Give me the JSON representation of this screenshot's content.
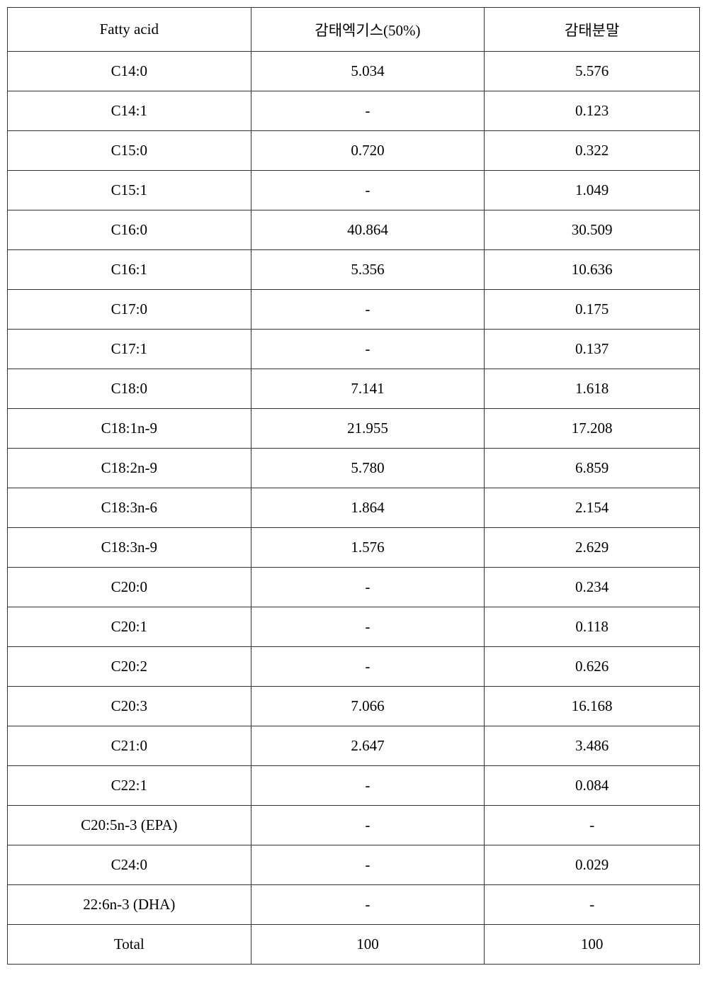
{
  "table": {
    "headers": {
      "col1": "Fatty acid",
      "col2": "감태엑기스(50%)",
      "col3": "감태분말"
    },
    "rows": [
      {
        "c1": "C14:0",
        "c2": "5.034",
        "c3": "5.576"
      },
      {
        "c1": "C14:1",
        "c2": "-",
        "c3": "0.123"
      },
      {
        "c1": "C15:0",
        "c2": "0.720",
        "c3": "0.322"
      },
      {
        "c1": "C15:1",
        "c2": "-",
        "c3": "1.049"
      },
      {
        "c1": "C16:0",
        "c2": "40.864",
        "c3": "30.509"
      },
      {
        "c1": "C16:1",
        "c2": "5.356",
        "c3": "10.636"
      },
      {
        "c1": "C17:0",
        "c2": "-",
        "c3": "0.175"
      },
      {
        "c1": "C17:1",
        "c2": "-",
        "c3": "0.137"
      },
      {
        "c1": "C18:0",
        "c2": "7.141",
        "c3": "1.618"
      },
      {
        "c1": "C18:1n-9",
        "c2": "21.955",
        "c3": "17.208"
      },
      {
        "c1": "C18:2n-9",
        "c2": "5.780",
        "c3": "6.859"
      },
      {
        "c1": "C18:3n-6",
        "c2": "1.864",
        "c3": "2.154"
      },
      {
        "c1": "C18:3n-9",
        "c2": "1.576",
        "c3": "2.629"
      },
      {
        "c1": "C20:0",
        "c2": "-",
        "c3": "0.234"
      },
      {
        "c1": "C20:1",
        "c2": "-",
        "c3": "0.118"
      },
      {
        "c1": "C20:2",
        "c2": "-",
        "c3": "0.626"
      },
      {
        "c1": "C20:3",
        "c2": "7.066",
        "c3": "16.168"
      },
      {
        "c1": "C21:0",
        "c2": "2.647",
        "c3": "3.486"
      },
      {
        "c1": "C22:1",
        "c2": "-",
        "c3": "0.084"
      },
      {
        "c1": "C20:5n-3 (EPA)",
        "c2": "-",
        "c3": "-"
      },
      {
        "c1": "C24:0",
        "c2": "-",
        "c3": "0.029"
      },
      {
        "c1": "22:6n-3 (DHA)",
        "c2": "-",
        "c3": "-"
      },
      {
        "c1": "Total",
        "c2": "100",
        "c3": "100"
      }
    ],
    "border_color": "#333333",
    "background_color": "#ffffff",
    "text_color": "#000000",
    "header_fontsize": 21,
    "cell_fontsize": 21,
    "font_family": "Georgia, Times New Roman, serif"
  }
}
